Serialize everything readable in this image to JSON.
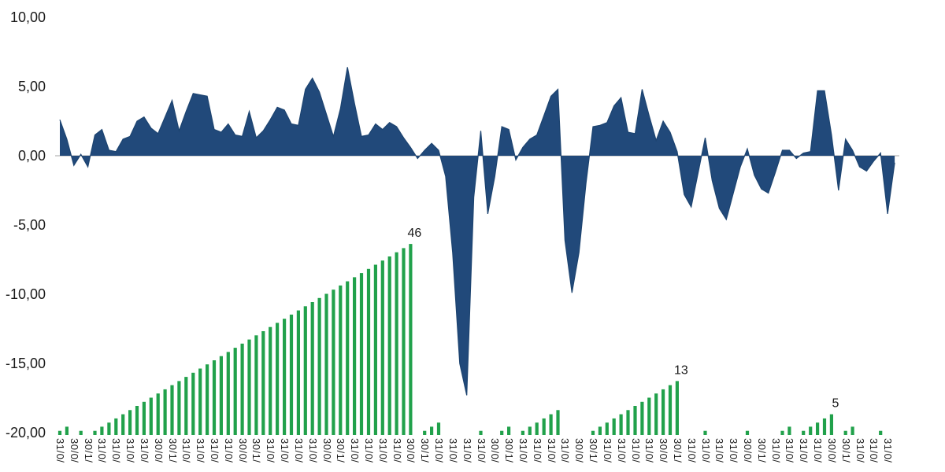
{
  "colors": {
    "area": "#21497A",
    "area_outline": "#1D4470",
    "bars": "#21A14B",
    "zero_line": "#A6A6A6",
    "text": "#1a1a1a"
  },
  "chart_data": {
    "type": "combo",
    "y_axis": {
      "ticks": [
        {
          "label": "10,00",
          "value": 10
        },
        {
          "label": "5,00",
          "value": 5
        },
        {
          "label": "0,00",
          "value": 0
        },
        {
          "label": "-5,00",
          "value": -5
        },
        {
          "label": "-10,00",
          "value": -10
        },
        {
          "label": "-15,00",
          "value": -15
        },
        {
          "label": "-20,00",
          "value": -20
        }
      ],
      "range": [
        -20,
        10
      ],
      "grid": false
    },
    "x_axis": {
      "tick_every_n_points": 2,
      "labels_truncated": [
        "31/0",
        "30/0",
        "30/1",
        "31/0",
        "31/0",
        "31/0",
        "31/0",
        "30/0",
        "30/1",
        "31/0",
        "31/0",
        "31/0",
        "31/0",
        "30/0",
        "30/1",
        "31/0",
        "31/0",
        "31/0",
        "31/0",
        "30/0",
        "30/1",
        "31/0",
        "31/0",
        "31/0",
        "31/0",
        "30/0",
        "30/1",
        "31/0",
        "31/0",
        "31/0",
        "31/0",
        "30/0",
        "30/1",
        "31/0",
        "31/0",
        "31/0",
        "31/0",
        "30/0",
        "30/1",
        "31/0",
        "31/0",
        "31/0",
        "31/0",
        "30/0",
        "30/1",
        "31/0",
        "31/0",
        "31/0",
        "31/0",
        "30/0",
        "30/1",
        "31/0",
        "31/0",
        "31/0",
        "31/0",
        "30/0",
        "30/1",
        "31/0",
        "31/0",
        "31/0"
      ]
    },
    "series": [
      {
        "name": "monthly-value-area",
        "type": "area",
        "values": [
          2.6,
          1.2,
          -0.7,
          0.1,
          -0.8,
          1.5,
          1.9,
          0.4,
          0.3,
          1.2,
          1.4,
          2.5,
          2.8,
          2.0,
          1.6,
          2.8,
          4.0,
          1.8,
          3.2,
          4.5,
          4.4,
          4.3,
          1.9,
          1.7,
          2.3,
          1.5,
          1.4,
          3.2,
          1.3,
          1.8,
          2.6,
          3.5,
          3.3,
          2.3,
          2.2,
          4.8,
          5.6,
          4.6,
          3.0,
          1.4,
          3.4,
          6.4,
          3.8,
          1.4,
          1.5,
          2.3,
          1.9,
          2.4,
          2.1,
          1.3,
          0.6,
          -0.2,
          0.4,
          0.9,
          0.4,
          -1.5,
          -7.0,
          -15.0,
          -17.3,
          -3.0,
          1.8,
          -4.2,
          -1.5,
          2.1,
          1.9,
          -0.3,
          0.6,
          1.2,
          1.5,
          2.9,
          4.3,
          4.8,
          -6.1,
          -9.9,
          -7.0,
          -2.0,
          2.1,
          2.2,
          2.4,
          3.6,
          4.2,
          1.7,
          1.6,
          4.8,
          2.9,
          1.1,
          2.5,
          1.7,
          0.3,
          -2.8,
          -3.7,
          -1.2,
          1.3,
          -1.8,
          -3.8,
          -4.6,
          -2.7,
          -0.8,
          0.5,
          -1.4,
          -2.4,
          -2.7,
          -1.2,
          0.4,
          0.4,
          -0.2,
          0.2,
          0.3,
          4.7,
          4.7,
          1.5,
          -2.5,
          1.2,
          0.4,
          -0.8,
          -1.1,
          -0.4,
          0.2,
          -4.2,
          -0.5
        ]
      },
      {
        "name": "consecutive-positive-month-count",
        "type": "bar",
        "values": [
          1,
          2,
          0,
          1,
          0,
          1,
          2,
          3,
          4,
          5,
          6,
          7,
          8,
          9,
          10,
          11,
          12,
          13,
          14,
          15,
          16,
          17,
          18,
          19,
          20,
          21,
          22,
          23,
          24,
          25,
          26,
          27,
          28,
          29,
          30,
          31,
          32,
          33,
          34,
          35,
          36,
          37,
          38,
          39,
          40,
          41,
          42,
          43,
          44,
          45,
          46,
          0,
          1,
          2,
          3,
          0,
          0,
          0,
          0,
          0,
          1,
          0,
          0,
          1,
          2,
          0,
          1,
          2,
          3,
          4,
          5,
          6,
          0,
          0,
          0,
          0,
          1,
          2,
          3,
          4,
          5,
          6,
          7,
          8,
          9,
          10,
          11,
          12,
          13,
          0,
          0,
          0,
          1,
          0,
          0,
          0,
          0,
          0,
          1,
          0,
          0,
          0,
          0,
          1,
          2,
          0,
          1,
          2,
          3,
          4,
          5,
          0,
          1,
          2,
          0,
          0,
          0,
          1,
          0,
          0
        ]
      }
    ],
    "bar_annotations": [
      {
        "index": 50,
        "label": "46"
      },
      {
        "index": 88,
        "label": "13"
      },
      {
        "index": 110,
        "label": "5"
      }
    ]
  }
}
